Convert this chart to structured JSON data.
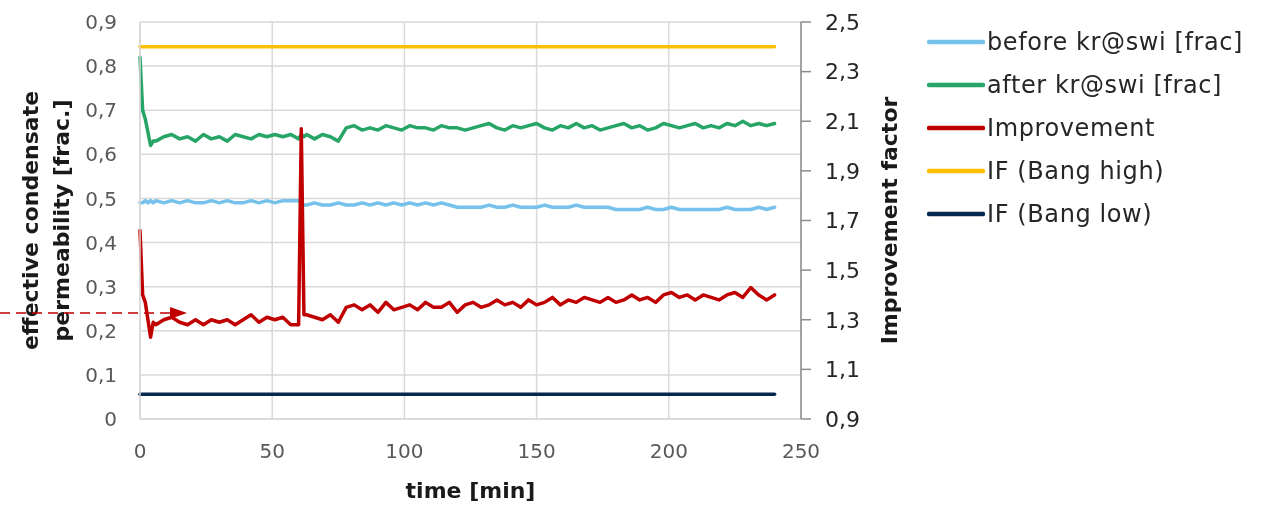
{
  "chart_data": {
    "type": "line",
    "xlabel": "time [min]",
    "ylabel": "effective condensate permeability [frac.]",
    "y2label": "Improvement factor",
    "x": [
      0,
      1,
      2,
      3,
      4,
      5,
      6,
      9,
      12,
      15,
      18,
      21,
      24,
      27,
      30,
      33,
      36,
      39,
      42,
      45,
      48,
      51,
      54,
      57,
      60,
      61,
      62,
      63,
      66,
      69,
      72,
      75,
      78,
      81,
      84,
      87,
      90,
      93,
      96,
      99,
      102,
      105,
      108,
      111,
      114,
      117,
      120,
      123,
      126,
      129,
      132,
      135,
      138,
      141,
      144,
      147,
      150,
      153,
      156,
      159,
      162,
      165,
      168,
      171,
      174,
      177,
      180,
      183,
      186,
      189,
      192,
      195,
      198,
      201,
      204,
      207,
      210,
      213,
      216,
      219,
      222,
      225,
      228,
      231,
      234,
      237,
      240
    ],
    "series": [
      {
        "name": "before kr@swi [frac]",
        "color": "#76c2ec",
        "values": [
          0.49,
          0.49,
          0.495,
          0.49,
          0.495,
          0.49,
          0.495,
          0.49,
          0.495,
          0.49,
          0.495,
          0.49,
          0.49,
          0.495,
          0.49,
          0.495,
          0.49,
          0.49,
          0.495,
          0.49,
          0.495,
          0.49,
          0.495,
          0.495,
          0.495,
          0.49,
          0.485,
          0.485,
          0.49,
          0.485,
          0.485,
          0.49,
          0.485,
          0.485,
          0.49,
          0.485,
          0.49,
          0.485,
          0.49,
          0.485,
          0.49,
          0.485,
          0.49,
          0.485,
          0.49,
          0.485,
          0.48,
          0.48,
          0.48,
          0.48,
          0.485,
          0.48,
          0.48,
          0.485,
          0.48,
          0.48,
          0.48,
          0.485,
          0.48,
          0.48,
          0.48,
          0.485,
          0.48,
          0.48,
          0.48,
          0.48,
          0.475,
          0.475,
          0.475,
          0.475,
          0.48,
          0.475,
          0.475,
          0.48,
          0.475,
          0.475,
          0.475,
          0.475,
          0.475,
          0.475,
          0.48,
          0.475,
          0.475,
          0.475,
          0.48,
          0.475,
          0.48
        ]
      },
      {
        "name": "after kr@swi [frac]",
        "color": "#27a567",
        "values": [
          0.82,
          0.7,
          0.68,
          0.65,
          0.62,
          0.63,
          0.63,
          0.64,
          0.645,
          0.635,
          0.64,
          0.63,
          0.645,
          0.635,
          0.64,
          0.63,
          0.645,
          0.64,
          0.635,
          0.645,
          0.64,
          0.645,
          0.64,
          0.645,
          0.635,
          0.645,
          0.64,
          0.645,
          0.635,
          0.645,
          0.64,
          0.63,
          0.66,
          0.665,
          0.655,
          0.66,
          0.655,
          0.665,
          0.66,
          0.655,
          0.665,
          0.66,
          0.66,
          0.655,
          0.665,
          0.66,
          0.66,
          0.655,
          0.66,
          0.665,
          0.67,
          0.66,
          0.655,
          0.665,
          0.66,
          0.665,
          0.67,
          0.66,
          0.655,
          0.665,
          0.66,
          0.67,
          0.66,
          0.665,
          0.655,
          0.66,
          0.665,
          0.67,
          0.66,
          0.665,
          0.655,
          0.66,
          0.67,
          0.665,
          0.66,
          0.665,
          0.67,
          0.66,
          0.665,
          0.66,
          0.67,
          0.665,
          0.675,
          0.665,
          0.67,
          0.665,
          0.67
        ]
      },
      {
        "name": "Improvement",
        "color": "#c00000",
        "axis": "y2",
        "values": [
          1.66,
          1.4,
          1.37,
          1.3,
          1.23,
          1.29,
          1.28,
          1.3,
          1.31,
          1.29,
          1.28,
          1.3,
          1.28,
          1.3,
          1.29,
          1.3,
          1.28,
          1.3,
          1.32,
          1.29,
          1.31,
          1.3,
          1.31,
          1.28,
          1.28,
          2.07,
          1.32,
          1.32,
          1.31,
          1.3,
          1.32,
          1.29,
          1.35,
          1.36,
          1.34,
          1.36,
          1.33,
          1.37,
          1.34,
          1.35,
          1.36,
          1.34,
          1.37,
          1.35,
          1.35,
          1.37,
          1.33,
          1.36,
          1.37,
          1.35,
          1.36,
          1.38,
          1.36,
          1.37,
          1.35,
          1.38,
          1.36,
          1.37,
          1.39,
          1.36,
          1.38,
          1.37,
          1.39,
          1.38,
          1.37,
          1.39,
          1.37,
          1.38,
          1.4,
          1.38,
          1.39,
          1.37,
          1.4,
          1.41,
          1.39,
          1.4,
          1.38,
          1.4,
          1.39,
          1.38,
          1.4,
          1.41,
          1.39,
          1.43,
          1.4,
          1.38,
          1.4
        ]
      },
      {
        "name": "IF (Bang high)",
        "color": "#ffc000",
        "axis": "y2",
        "values": [
          2.4,
          2.4,
          2.4,
          2.4,
          2.4,
          2.4,
          2.4,
          2.4,
          2.4,
          2.4,
          2.4,
          2.4,
          2.4,
          2.4,
          2.4,
          2.4,
          2.4,
          2.4,
          2.4,
          2.4,
          2.4,
          2.4,
          2.4,
          2.4,
          2.4,
          2.4,
          2.4,
          2.4,
          2.4,
          2.4,
          2.4,
          2.4,
          2.4,
          2.4,
          2.4,
          2.4,
          2.4,
          2.4,
          2.4,
          2.4,
          2.4,
          2.4,
          2.4,
          2.4,
          2.4,
          2.4,
          2.4,
          2.4,
          2.4,
          2.4,
          2.4,
          2.4,
          2.4,
          2.4,
          2.4,
          2.4,
          2.4,
          2.4,
          2.4,
          2.4,
          2.4,
          2.4,
          2.4,
          2.4,
          2.4,
          2.4,
          2.4,
          2.4,
          2.4,
          2.4,
          2.4,
          2.4,
          2.4,
          2.4,
          2.4,
          2.4,
          2.4,
          2.4,
          2.4,
          2.4,
          2.4,
          2.4,
          2.4,
          2.4,
          2.4,
          2.4,
          2.4
        ]
      },
      {
        "name": "IF (Bang low)",
        "color": "#06284f",
        "axis": "y2",
        "values": [
          1,
          1,
          1,
          1,
          1,
          1,
          1,
          1,
          1,
          1,
          1,
          1,
          1,
          1,
          1,
          1,
          1,
          1,
          1,
          1,
          1,
          1,
          1,
          1,
          1,
          1,
          1,
          1,
          1,
          1,
          1,
          1,
          1,
          1,
          1,
          1,
          1,
          1,
          1,
          1,
          1,
          1,
          1,
          1,
          1,
          1,
          1,
          1,
          1,
          1,
          1,
          1,
          1,
          1,
          1,
          1,
          1,
          1,
          1,
          1,
          1,
          1,
          1,
          1,
          1,
          1,
          1,
          1,
          1,
          1,
          1,
          1,
          1,
          1,
          1,
          1,
          1,
          1,
          1,
          1,
          1,
          1,
          1,
          1,
          1,
          1,
          1
        ]
      }
    ],
    "xlim": [
      0,
      250
    ],
    "xticks": [
      0,
      50,
      100,
      150,
      200,
      250
    ],
    "ylim": [
      0,
      0.9
    ],
    "yticks": [
      0,
      {
        "value": 0.1,
        "label": "0,1"
      },
      {
        "value": 0.2,
        "label": "0,2"
      },
      {
        "value": 0.3,
        "label": "0,3"
      },
      {
        "value": 0.4,
        "label": "0,4"
      },
      {
        "value": 0.5,
        "label": "0,5"
      },
      {
        "value": 0.6,
        "label": "0,6"
      },
      {
        "value": 0.7,
        "label": "0,7"
      },
      {
        "value": 0.8,
        "label": "0,8"
      },
      {
        "value": 0.9,
        "label": "0,9"
      }
    ],
    "y2lim": [
      0.9,
      2.5
    ],
    "y2ticks": [
      {
        "value": 0.9,
        "label": "0,9"
      },
      {
        "value": 1.1,
        "label": "1,1"
      },
      {
        "value": 1.3,
        "label": "1,3"
      },
      {
        "value": 1.5,
        "label": "1,5"
      },
      {
        "value": 1.7,
        "label": "1,7"
      },
      {
        "value": 1.9,
        "label": "1,9"
      },
      {
        "value": 2.1,
        "label": "2,1"
      },
      {
        "value": 2.3,
        "label": "2,3"
      },
      {
        "value": 2.5,
        "label": "2,5"
      }
    ],
    "grid": true,
    "legend": "right"
  }
}
